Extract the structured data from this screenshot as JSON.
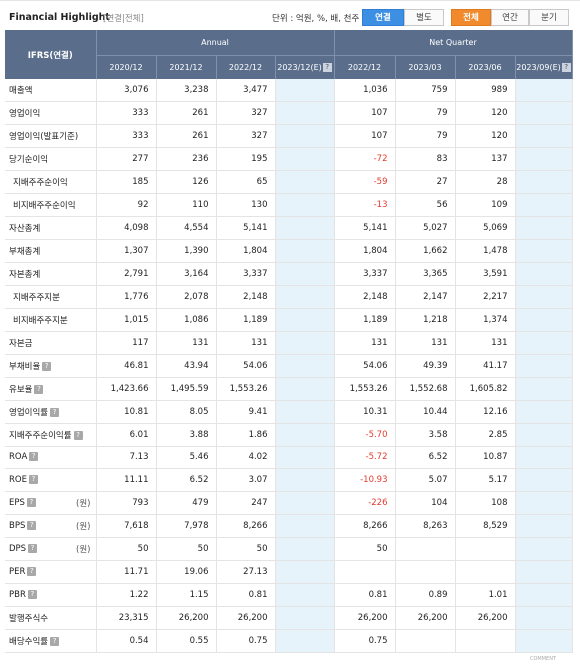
{
  "header": {
    "title": "Financial Highlight",
    "subtitle": "[연결|전체]",
    "unit_label": "단위 : 억원, %, 배, 천주",
    "buttons": {
      "consolidated": "연결",
      "separate": "별도",
      "all": "전체",
      "annual": "연간",
      "quarter": "분기"
    }
  },
  "table": {
    "corner": "IFRS(연결)",
    "groups": {
      "annual": "Annual",
      "quarter": "Net Quarter"
    },
    "periods": [
      "2020/12",
      "2021/12",
      "2022/12",
      "2023/12(E)",
      "2022/12",
      "2023/03",
      "2023/06",
      "2023/09(E)"
    ],
    "won_label": "(원)",
    "rows": [
      {
        "label": "매출액",
        "values": [
          "3,076",
          "3,238",
          "3,477",
          "",
          "1,036",
          "759",
          "989",
          ""
        ]
      },
      {
        "label": "영업이익",
        "values": [
          "333",
          "261",
          "327",
          "",
          "107",
          "79",
          "120",
          ""
        ]
      },
      {
        "label": "영업이익(발표기준)",
        "values": [
          "333",
          "261",
          "327",
          "",
          "107",
          "79",
          "120",
          ""
        ]
      },
      {
        "label": "당기순이익",
        "values": [
          "277",
          "236",
          "195",
          "",
          "-72",
          "83",
          "137",
          ""
        ]
      },
      {
        "label": "지배주주순이익",
        "values": [
          "185",
          "126",
          "65",
          "",
          "-59",
          "27",
          "28",
          ""
        ]
      },
      {
        "label": "비지배주주순이익",
        "values": [
          "92",
          "110",
          "130",
          "",
          "-13",
          "56",
          "109",
          ""
        ]
      },
      {
        "label": "자산총계",
        "values": [
          "4,098",
          "4,554",
          "5,141",
          "",
          "5,141",
          "5,027",
          "5,069",
          ""
        ]
      },
      {
        "label": "부채총계",
        "values": [
          "1,307",
          "1,390",
          "1,804",
          "",
          "1,804",
          "1,662",
          "1,478",
          ""
        ]
      },
      {
        "label": "자본총계",
        "values": [
          "2,791",
          "3,164",
          "3,337",
          "",
          "3,337",
          "3,365",
          "3,591",
          ""
        ]
      },
      {
        "label": "지배주주지분",
        "values": [
          "1,776",
          "2,078",
          "2,148",
          "",
          "2,148",
          "2,147",
          "2,217",
          ""
        ]
      },
      {
        "label": "비지배주주지분",
        "values": [
          "1,015",
          "1,086",
          "1,189",
          "",
          "1,189",
          "1,218",
          "1,374",
          ""
        ]
      },
      {
        "label": "자본금",
        "values": [
          "117",
          "131",
          "131",
          "",
          "131",
          "131",
          "131",
          ""
        ]
      },
      {
        "label": "부채비율",
        "values": [
          "46.81",
          "43.94",
          "54.06",
          "",
          "54.06",
          "49.39",
          "41.17",
          ""
        ]
      },
      {
        "label": "유보율",
        "values": [
          "1,423.66",
          "1,495.59",
          "1,553.26",
          "",
          "1,553.26",
          "1,552.68",
          "1,605.82",
          ""
        ]
      },
      {
        "label": "영업이익률",
        "values": [
          "10.81",
          "8.05",
          "9.41",
          "",
          "10.31",
          "10.44",
          "12.16",
          ""
        ]
      },
      {
        "label": "지배주주순이익률",
        "values": [
          "6.01",
          "3.88",
          "1.86",
          "",
          "-5.70",
          "3.58",
          "2.85",
          ""
        ]
      },
      {
        "label": "ROA",
        "values": [
          "7.13",
          "5.46",
          "4.02",
          "",
          "-5.72",
          "6.52",
          "10.87",
          ""
        ]
      },
      {
        "label": "ROE",
        "values": [
          "11.11",
          "6.52",
          "3.07",
          "",
          "-10.93",
          "5.07",
          "5.17",
          ""
        ]
      },
      {
        "label": "EPS",
        "values": [
          "793",
          "479",
          "247",
          "",
          "-226",
          "104",
          "108",
          ""
        ]
      },
      {
        "label": "BPS",
        "values": [
          "7,618",
          "7,978",
          "8,266",
          "",
          "8,266",
          "8,263",
          "8,529",
          ""
        ]
      },
      {
        "label": "DPS",
        "values": [
          "50",
          "50",
          "50",
          "",
          "50",
          "",
          "",
          ""
        ]
      },
      {
        "label": "PER",
        "values": [
          "11.71",
          "19.06",
          "27.13",
          "",
          "",
          "",
          "",
          ""
        ]
      },
      {
        "label": "PBR",
        "values": [
          "1.22",
          "1.15",
          "0.81",
          "",
          "0.81",
          "0.89",
          "1.01",
          ""
        ]
      },
      {
        "label": "발행주식수",
        "values": [
          "23,315",
          "26,200",
          "26,200",
          "",
          "26,200",
          "26,200",
          "26,200",
          ""
        ]
      },
      {
        "label": "배당수익률",
        "values": [
          "0.54",
          "0.55",
          "0.75",
          "",
          "0.75",
          "",
          "",
          ""
        ]
      }
    ]
  },
  "footer": {
    "text": "COMMENT"
  },
  "colors": {
    "header_bg": "#5a6e8c",
    "estimate_bg": "#e6f3fb",
    "negative": "#e23b2e",
    "accent_blue": "#3d8fe4",
    "accent_orange": "#f08a2c"
  }
}
